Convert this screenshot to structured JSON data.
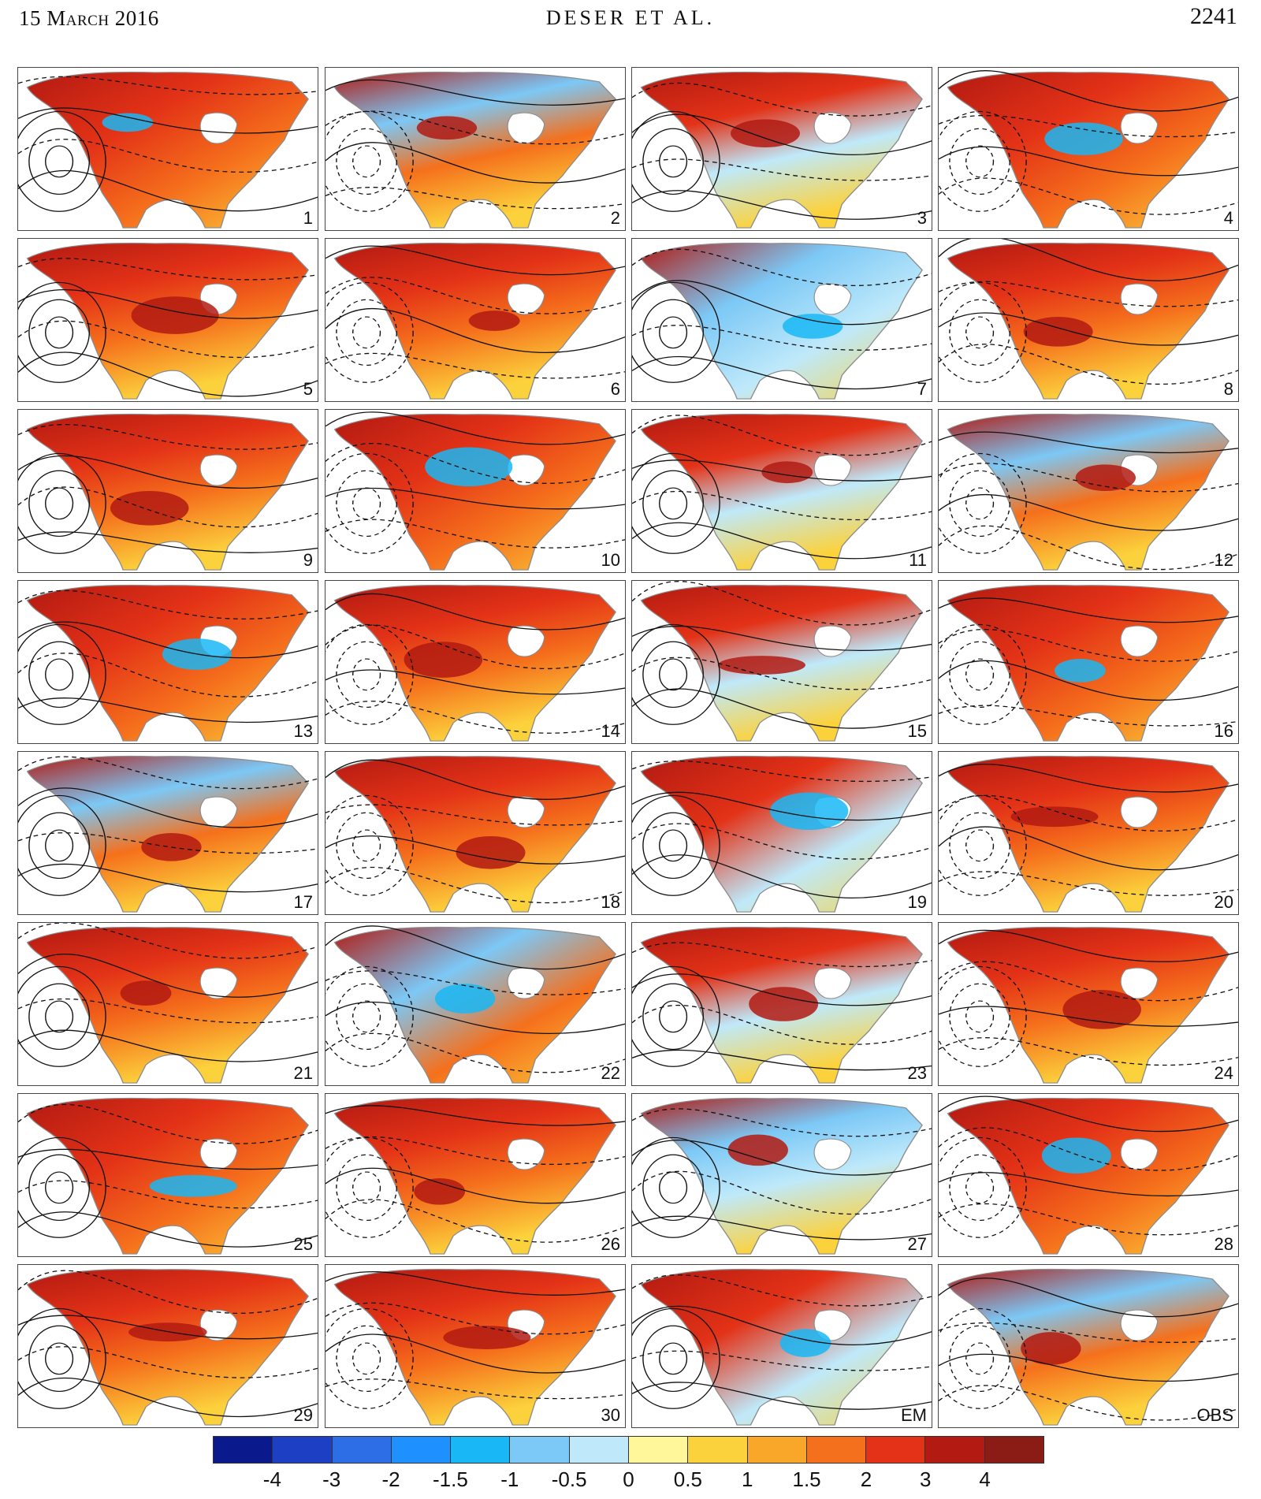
{
  "header": {
    "date": "15 March 2016",
    "authors": "DESER ET AL.",
    "page_number": "2241"
  },
  "panels": [
    "1",
    "2",
    "3",
    "4",
    "5",
    "6",
    "7",
    "8",
    "9",
    "10",
    "11",
    "12",
    "13",
    "14",
    "15",
    "16",
    "17",
    "18",
    "19",
    "20",
    "21",
    "22",
    "23",
    "24",
    "25",
    "26",
    "27",
    "28",
    "29",
    "30",
    "EM",
    "OBS"
  ],
  "colorbar": {
    "tick_labels": [
      "-4",
      "-3",
      "-2",
      "-1.5",
      "-1",
      "-0.5",
      "0",
      "0.5",
      "1",
      "1.5",
      "2",
      "3",
      "4"
    ],
    "colors": [
      "#0a1a8c",
      "#1c3fc4",
      "#2d6ee6",
      "#1e90ff",
      "#19b7f5",
      "#7cc8f6",
      "#bfe9fa",
      "#fff799",
      "#fcd23c",
      "#f9a728",
      "#f5701c",
      "#e33217",
      "#b21a12",
      "#8a1c15"
    ]
  }
}
